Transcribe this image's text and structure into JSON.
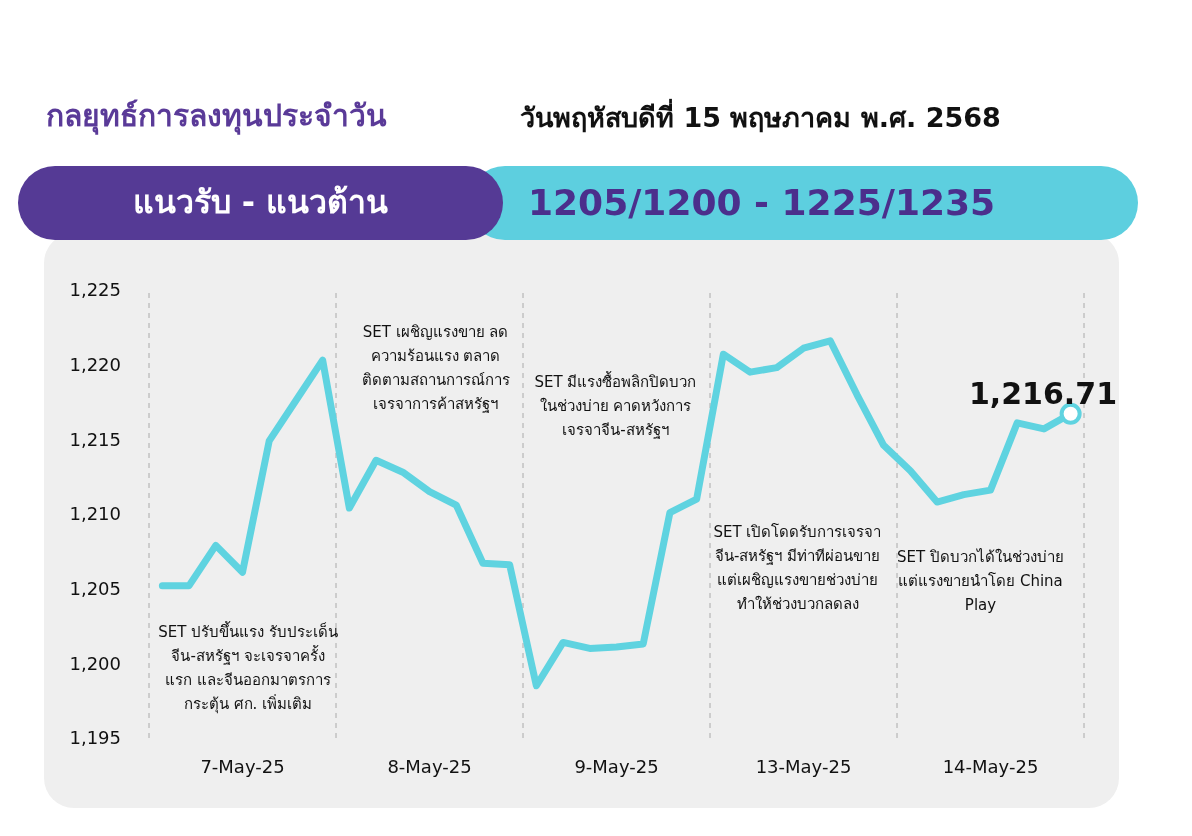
{
  "chart_data": {
    "type": "line",
    "title": "กลยุทธ์การลงทุนประจำวัน",
    "subtitle": "วันพฤหัสบดีที่ 15 พฤษภาคม พ.ศ. 2568",
    "annotations": [
      "แนวรับ - แนวต้าน",
      "1205/1200 - 1225/1235",
      "SET ปรับขึ้นแรง รับประเด็นจีน-สหรัฐฯ จะเจรจาครั้งแรก และจีนออกมาตรการกระตุ้น ศก. เพิ่มเติม",
      "SET เผชิญแรงขาย ลดความร้อนแรง ตลาดติดตามสถานการณ์การเจรจาการค้าสหรัฐฯ",
      "SET มีแรงซื้อพลิกปิดบวกในช่วงบ่าย คาดหวังการเจรจาจีน-สหรัฐฯ",
      "SET เปิดโดดรับการเจรจาจีน-สหรัฐฯ มีท่าทีผ่อนขาย แต่เผชิญแรงขายช่วงบ่าย ทำให้ช่วงบวกลดลง",
      "SET ปิดบวกได้ในช่วงบ่าย แต่แรงขายนำโดย China Play",
      "1,216.71"
    ],
    "categories": [
      null,
      null,
      null,
      "7-May-25",
      null,
      null,
      null,
      null,
      null,
      null,
      "8-May-25",
      null,
      null,
      null,
      null,
      null,
      null,
      "9-May-25",
      null,
      null,
      null,
      null,
      null,
      null,
      "13-May-25",
      null,
      null,
      null,
      null,
      null,
      null,
      "14-May-25",
      null,
      null,
      null
    ],
    "values": [
      1205.2,
      1205.2,
      1207.9,
      1206.1,
      1214.9,
      1217.6,
      1220.3,
      1210.4,
      1213.6,
      1212.8,
      1211.5,
      1210.6,
      1206.7,
      1206.6,
      1198.5,
      1201.4,
      1201.0,
      1201.1,
      1201.3,
      1210.1,
      1211.0,
      1220.7,
      1219.5,
      1219.8,
      1221.1,
      1221.6,
      1218.0,
      1214.6,
      1212.9,
      1210.8,
      1211.3,
      1211.6,
      1216.1,
      1215.7,
      1216.71
    ],
    "color": "#5fd3e0",
    "marker": "none",
    "line_style": "solid",
    "ylim": [
      1195,
      1225
    ],
    "yticks": [
      {
        "value": 1195,
        "label": "1,195"
      },
      {
        "value": 1200,
        "label": "1,200"
      },
      {
        "value": 1205,
        "label": "1,205"
      },
      {
        "value": 1210,
        "label": "1,210"
      },
      {
        "value": 1215,
        "label": "1,215"
      },
      {
        "value": 1220,
        "label": "1,220"
      },
      {
        "value": 1225,
        "label": "1,225"
      }
    ]
  }
}
